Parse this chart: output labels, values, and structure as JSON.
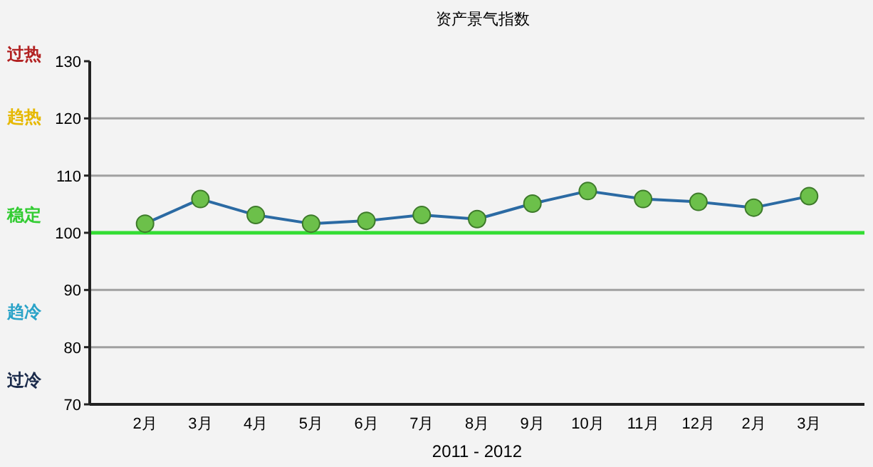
{
  "chart_data": {
    "type": "line",
    "title": "资产景气指数",
    "xlabel": "2011 - 2012",
    "categories": [
      "2月",
      "3月",
      "4月",
      "5月",
      "6月",
      "7月",
      "8月",
      "9月",
      "10月",
      "11月",
      "12月",
      "2月",
      "3月"
    ],
    "series": [
      {
        "color": "#2b6aa3",
        "values": [
          101.6,
          105.9,
          103.1,
          101.6,
          102.1,
          103.1,
          102.4,
          105.1,
          107.3,
          105.9,
          105.4,
          104.4,
          106.4
        ]
      }
    ],
    "ylim": [
      70,
      130
    ],
    "yticks": [
      70,
      80,
      90,
      100,
      110,
      120,
      130
    ],
    "grid": "y",
    "marker": "circle",
    "line_style": "solid",
    "ref_lines": [
      {
        "axis": "y",
        "value": 100,
        "color": "#33dd33"
      }
    ],
    "annotations": [
      "过热",
      "趋热",
      "稳定",
      "趋冷",
      "过冷"
    ]
  }
}
